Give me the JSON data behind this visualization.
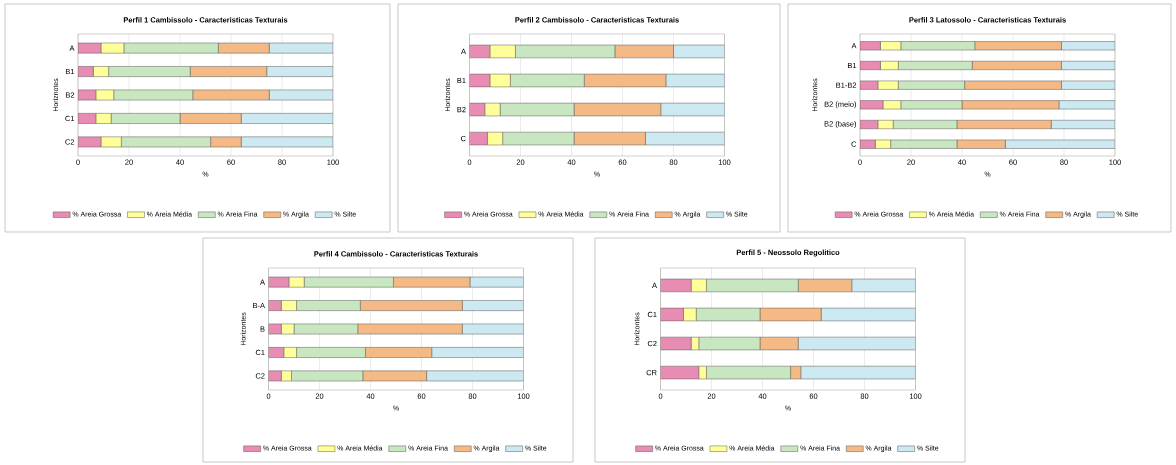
{
  "chart_data": [
    {
      "type": "bar",
      "orientation": "horizontal",
      "stacked": true,
      "title": "Perfil 1 Cambissolo - Caracteristicas Texturais",
      "xlabel": "%",
      "ylabel": "Horiznotes",
      "categories": [
        "A",
        "B1",
        "B2",
        "C1",
        "C2"
      ],
      "xlim": [
        0,
        100
      ],
      "xticks": [
        0,
        20,
        40,
        60,
        80,
        100
      ],
      "grid": "x",
      "legend": "bottom",
      "series": [
        {
          "name": "% Areia Grossa",
          "color": "#e88cb4",
          "values": [
            9,
            6,
            7,
            7,
            9
          ]
        },
        {
          "name": "% Areia Média",
          "color": "#ffff99",
          "values": [
            9,
            6,
            7,
            6,
            8
          ]
        },
        {
          "name": "% Areia Fina",
          "color": "#c8e6c0",
          "values": [
            37,
            32,
            31,
            27,
            35
          ]
        },
        {
          "name": "% Argila",
          "color": "#f4b984",
          "values": [
            20,
            30,
            30,
            24,
            12
          ]
        },
        {
          "name": "% Silte",
          "color": "#cce8f0",
          "values": [
            25,
            26,
            25,
            36,
            36
          ]
        }
      ]
    },
    {
      "type": "bar",
      "orientation": "horizontal",
      "stacked": true,
      "title": "Perfil 2 Cambissolo - Caracteristicas Texturais",
      "xlabel": "%",
      "ylabel": "Horizontes",
      "categories": [
        "A",
        "B1",
        "B2",
        "C"
      ],
      "xlim": [
        0,
        100
      ],
      "xticks": [
        0,
        20,
        40,
        60,
        80,
        100
      ],
      "grid": "x",
      "legend": "bottom",
      "series": [
        {
          "name": "% Areia Grossa",
          "color": "#e88cb4",
          "values": [
            8,
            8,
            6,
            7
          ]
        },
        {
          "name": "% Areia Média",
          "color": "#ffff99",
          "values": [
            10,
            8,
            6,
            6
          ]
        },
        {
          "name": "% Areia Fina",
          "color": "#c8e6c0",
          "values": [
            39,
            29,
            29,
            28
          ]
        },
        {
          "name": "% Argila",
          "color": "#f4b984",
          "values": [
            23,
            32,
            34,
            28
          ]
        },
        {
          "name": "% Silte",
          "color": "#cce8f0",
          "values": [
            20,
            23,
            25,
            31
          ]
        }
      ]
    },
    {
      "type": "bar",
      "orientation": "horizontal",
      "stacked": true,
      "title": "Perfil 3 Latossolo - Caracteristicas Texturais",
      "xlabel": "%",
      "ylabel": "Horizontes",
      "categories": [
        "A",
        "B1",
        "B1-B2",
        "B2 (meio)",
        "B2 (base)",
        "C"
      ],
      "xlim": [
        0,
        100
      ],
      "xticks": [
        0,
        20,
        40,
        60,
        80,
        100
      ],
      "grid": "x",
      "legend": "bottom",
      "series": [
        {
          "name": "% Areia Grossa",
          "color": "#e88cb4",
          "values": [
            8,
            8,
            7,
            9,
            7,
            6
          ]
        },
        {
          "name": "% Areia Média",
          "color": "#ffff99",
          "values": [
            8,
            7,
            8,
            7,
            6,
            6
          ]
        },
        {
          "name": "% Areia Fina",
          "color": "#c8e6c0",
          "values": [
            29,
            29,
            26,
            24,
            25,
            26
          ]
        },
        {
          "name": "% Argila",
          "color": "#f4b984",
          "values": [
            34,
            35,
            38,
            38,
            37,
            19
          ]
        },
        {
          "name": "% Silte",
          "color": "#cce8f0",
          "values": [
            21,
            21,
            21,
            22,
            25,
            43
          ]
        }
      ]
    },
    {
      "type": "bar",
      "orientation": "horizontal",
      "stacked": true,
      "title": "Perfil 4 Cambissolo - Caracteristicas Texturais",
      "xlabel": "%",
      "ylabel": "Horizontes",
      "categories": [
        "A",
        "B-A",
        "B",
        "C1",
        "C2"
      ],
      "xlim": [
        0,
        100
      ],
      "xticks": [
        0,
        20,
        40,
        60,
        80,
        100
      ],
      "grid": "x",
      "legend": "bottom",
      "series": [
        {
          "name": "% Areia Grossa",
          "color": "#e88cb4",
          "values": [
            8,
            5,
            5,
            6,
            5
          ]
        },
        {
          "name": "% Areia Média",
          "color": "#ffff99",
          "values": [
            6,
            6,
            5,
            5,
            4
          ]
        },
        {
          "name": "% Areia Fina",
          "color": "#c8e6c0",
          "values": [
            35,
            25,
            25,
            27,
            28
          ]
        },
        {
          "name": "% Argila",
          "color": "#f4b984",
          "values": [
            30,
            40,
            41,
            26,
            25
          ]
        },
        {
          "name": "% Silte",
          "color": "#cce8f0",
          "values": [
            21,
            24,
            24,
            36,
            38
          ]
        }
      ]
    },
    {
      "type": "bar",
      "orientation": "horizontal",
      "stacked": true,
      "title": "Perfil 5 - Neossolo Regolitico",
      "xlabel": "%",
      "ylabel": "Horizontes",
      "categories": [
        "A",
        "C1",
        "C2",
        "CR"
      ],
      "xlim": [
        0,
        100
      ],
      "xticks": [
        0,
        20,
        40,
        60,
        80,
        100
      ],
      "grid": "x",
      "legend": "bottom",
      "series": [
        {
          "name": "% Areia Grossa",
          "color": "#e88cb4",
          "values": [
            12,
            9,
            12,
            15
          ]
        },
        {
          "name": "% Areia Média",
          "color": "#ffff99",
          "values": [
            6,
            5,
            3,
            3
          ]
        },
        {
          "name": "% Areia Fina",
          "color": "#c8e6c0",
          "values": [
            36,
            25,
            24,
            33
          ]
        },
        {
          "name": "% Argila",
          "color": "#f4b984",
          "values": [
            21,
            24,
            15,
            4
          ]
        },
        {
          "name": "% Silte",
          "color": "#cce8f0",
          "values": [
            25,
            37,
            46,
            45
          ]
        }
      ]
    }
  ]
}
